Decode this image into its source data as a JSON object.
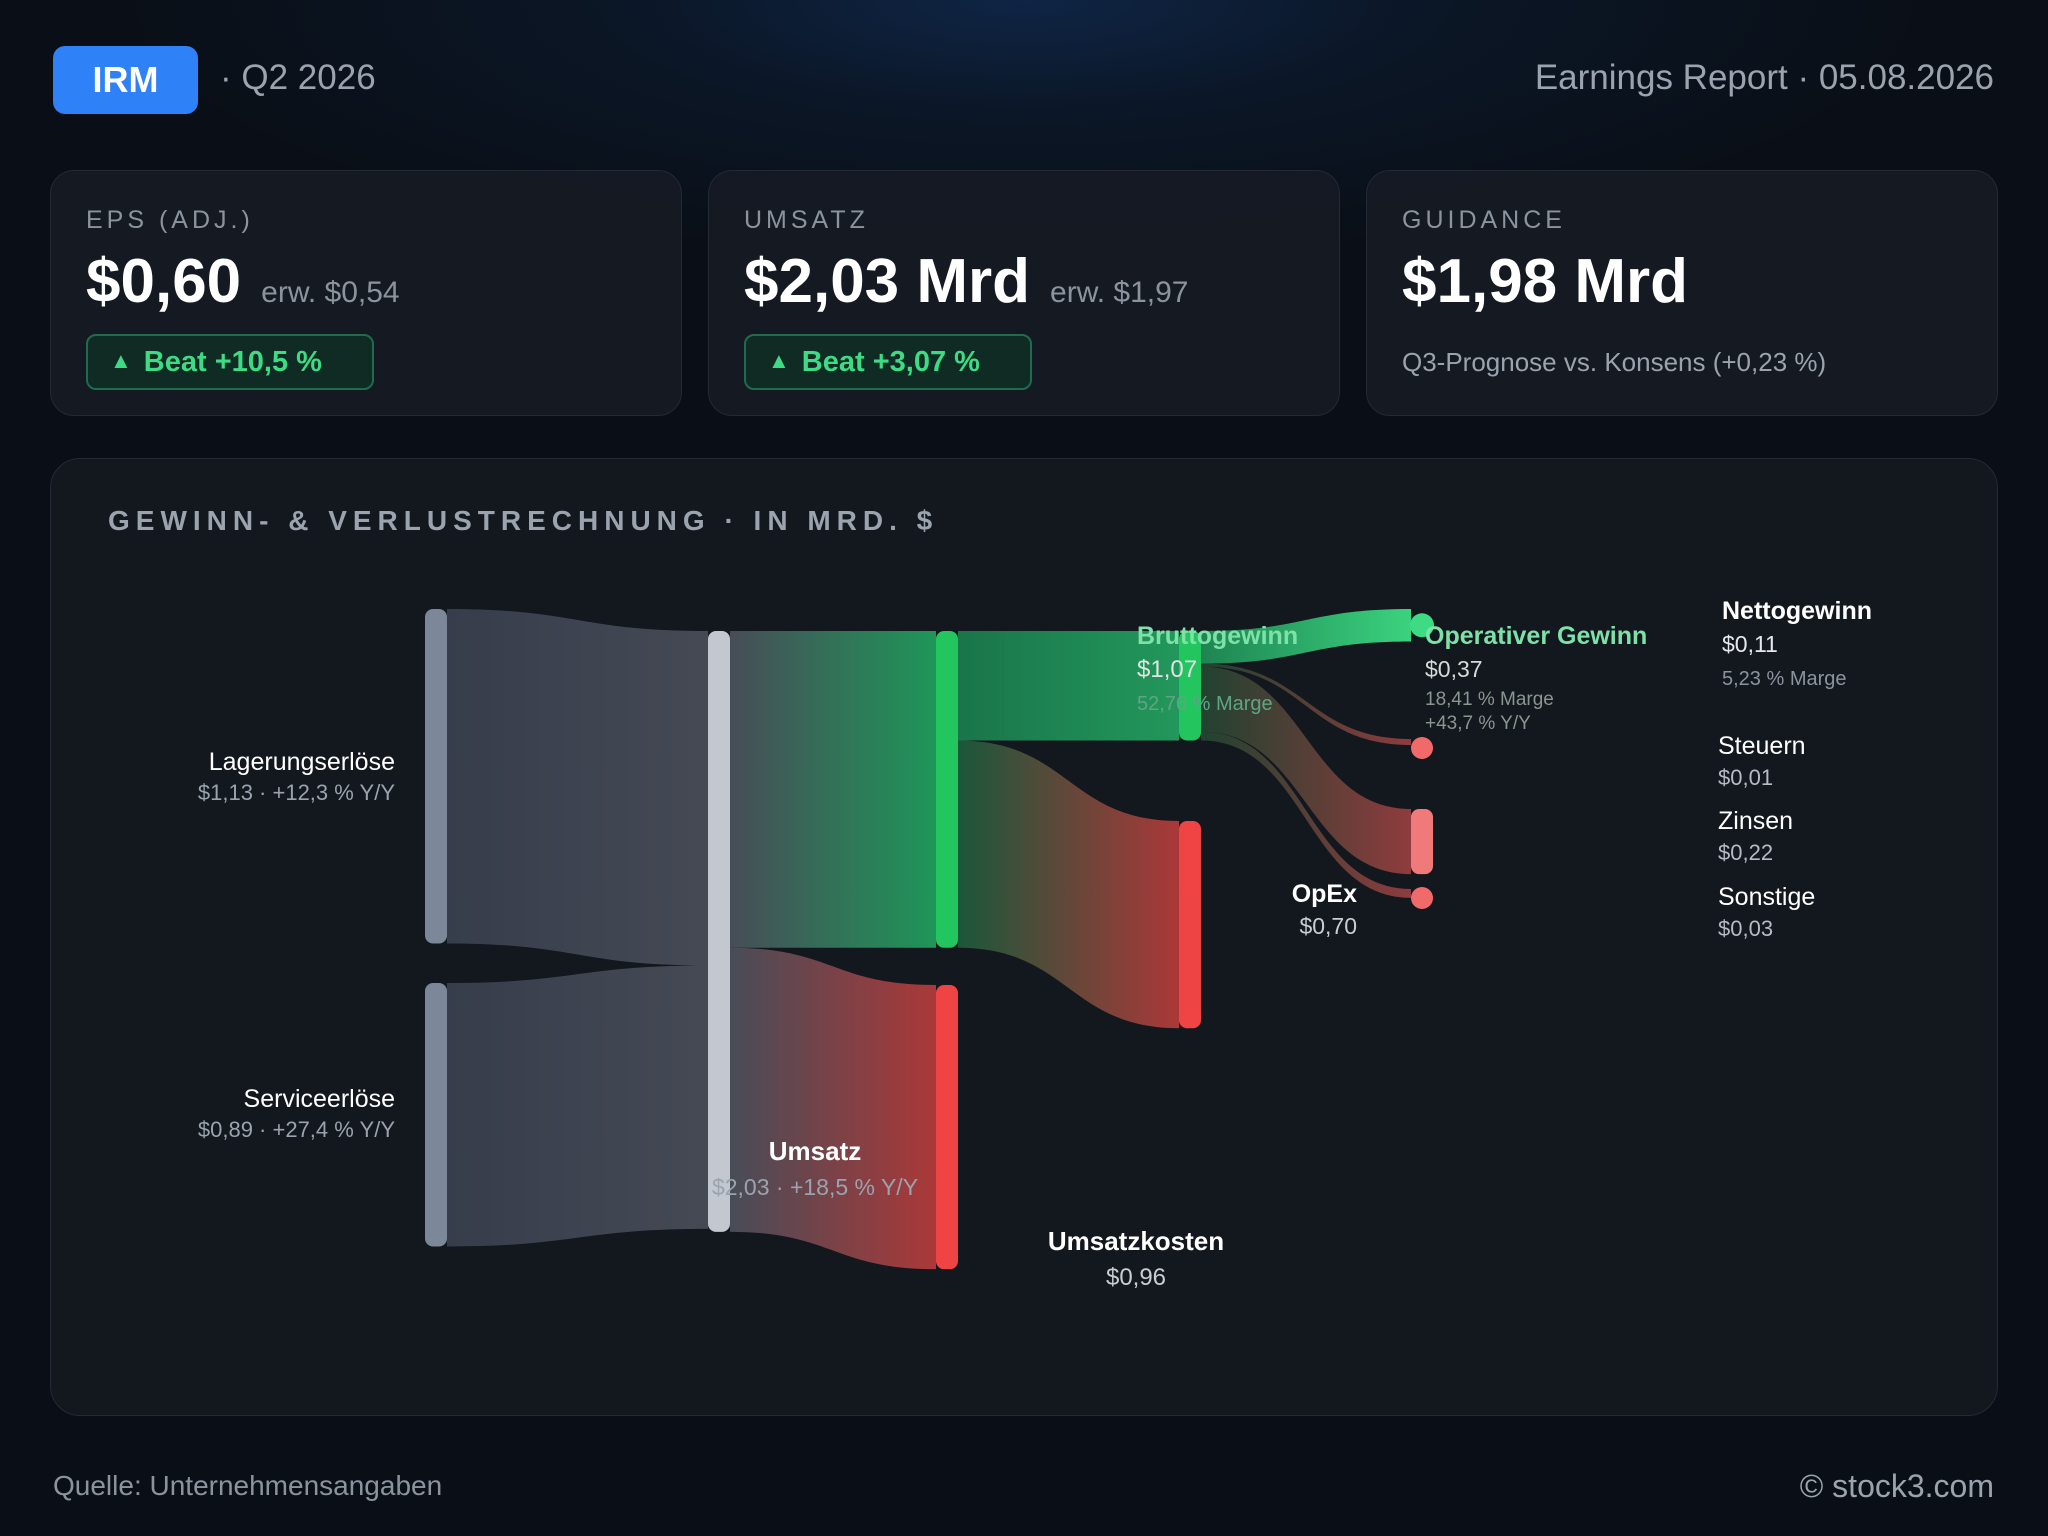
{
  "header": {
    "ticker": "IRM",
    "quarter": "· Q2 2026",
    "report": "Earnings Report · 05.08.2026"
  },
  "cards": [
    {
      "label": "EPS (ADJ.)",
      "value": "$0,60",
      "expected": "erw. $0,54",
      "badge": "Beat +10,5 %"
    },
    {
      "label": "UMSATZ",
      "value": "$2,03 Mrd",
      "expected": "erw. $1,97",
      "badge": "Beat +3,07 %"
    },
    {
      "label": "GUIDANCE",
      "value": "$1,98 Mrd",
      "note": "Q3-Prognose vs. Konsens (+0,23 %)"
    }
  ],
  "colors": {
    "accent": "#2f81f7",
    "positive": "#22c55e",
    "negative": "#ef4444",
    "revenue_node": "#c2c7d0",
    "segment_node": "#7c8799"
  },
  "chart_data": {
    "type": "sankey",
    "title": "GEWINN- & VERLUSTRECHNUNG · IN MRD. $",
    "unit": "Mrd. $",
    "nodes": [
      {
        "id": "lager",
        "name": "Lagerungserlöse",
        "value": 1.13,
        "detail": "$1,13 · +12,3 % Y/Y"
      },
      {
        "id": "service",
        "name": "Serviceerlöse",
        "value": 0.89,
        "detail": "$0,89 · +27,4 % Y/Y"
      },
      {
        "id": "umsatz",
        "name": "Umsatz",
        "value": 2.03,
        "detail": "$2,03 · +18,5 % Y/Y"
      },
      {
        "id": "brutto",
        "name": "Bruttogewinn",
        "value": 1.07,
        "detail": "$1,07",
        "margin": "52,76 % Marge"
      },
      {
        "id": "kosten",
        "name": "Umsatzkosten",
        "value": 0.96,
        "detail": "$0,96"
      },
      {
        "id": "operativ",
        "name": "Operativer Gewinn",
        "value": 0.37,
        "detail": "$0,37",
        "margin": "18,41 % Marge",
        "growth": "+43,7 % Y/Y"
      },
      {
        "id": "opex",
        "name": "OpEx",
        "value": 0.7,
        "detail": "$0,70"
      },
      {
        "id": "netto",
        "name": "Nettogewinn",
        "value": 0.11,
        "detail": "$0,11",
        "margin": "5,23 % Marge"
      },
      {
        "id": "steuern",
        "name": "Steuern",
        "value": 0.01,
        "detail": "$0,01"
      },
      {
        "id": "zinsen",
        "name": "Zinsen",
        "value": 0.22,
        "detail": "$0,22"
      },
      {
        "id": "sonstige",
        "name": "Sonstige",
        "value": 0.03,
        "detail": "$0,03"
      }
    ],
    "links": [
      {
        "source": "lager",
        "target": "umsatz",
        "value": 1.13
      },
      {
        "source": "service",
        "target": "umsatz",
        "value": 0.89
      },
      {
        "source": "umsatz",
        "target": "brutto",
        "value": 1.07
      },
      {
        "source": "umsatz",
        "target": "kosten",
        "value": 0.96
      },
      {
        "source": "brutto",
        "target": "operativ",
        "value": 0.37
      },
      {
        "source": "brutto",
        "target": "opex",
        "value": 0.7
      },
      {
        "source": "operativ",
        "target": "netto",
        "value": 0.11
      },
      {
        "source": "operativ",
        "target": "steuern",
        "value": 0.01
      },
      {
        "source": "operativ",
        "target": "zinsen",
        "value": 0.22
      },
      {
        "source": "operativ",
        "target": "sonstige",
        "value": 0.03
      }
    ]
  },
  "footer": {
    "source": "Quelle: Unternehmensangaben",
    "copyright": "© stock3.com"
  }
}
